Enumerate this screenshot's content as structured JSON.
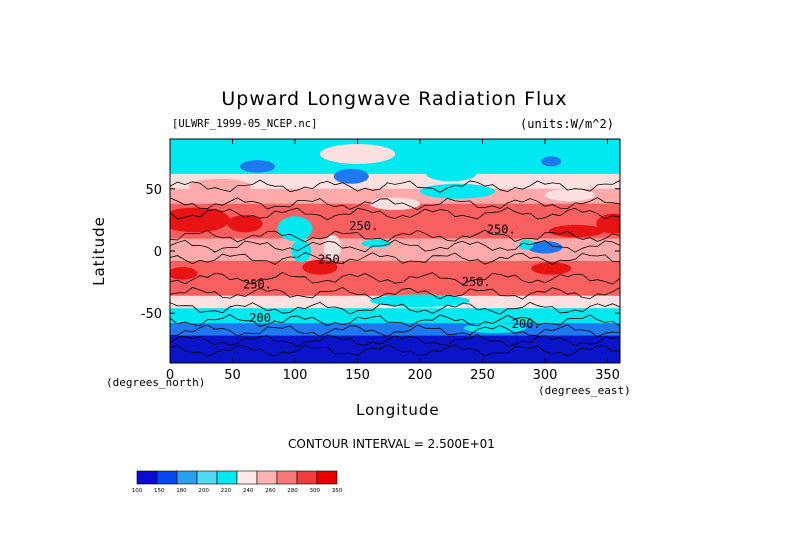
{
  "chart_data": {
    "type": "heatmap",
    "title": "Upward Longwave Radiation Flux",
    "file_label": "[ULWRF_1999-05_NCEP.nc]",
    "units_label": "(units:W/m^2)",
    "xlabel": "Longitude",
    "ylabel": "Latitude",
    "x_units": "(degrees_east)",
    "y_units": "(degrees_north)",
    "xlim": [
      0,
      360
    ],
    "ylim": [
      -90,
      90
    ],
    "x_ticks": [
      "0",
      "50",
      "100",
      "150",
      "200",
      "250",
      "300",
      "350"
    ],
    "y_ticks": [
      "50",
      "0",
      "-50"
    ],
    "contour_interval_text": "CONTOUR INTERVAL = 2.500E+01",
    "contour_labels": [
      {
        "text": "250.",
        "lon": 70,
        "lat": -30
      },
      {
        "text": "250.",
        "lon": 155,
        "lat": 17
      },
      {
        "text": "250.",
        "lon": 245,
        "lat": -28
      },
      {
        "text": "250.",
        "lon": 265,
        "lat": 14
      },
      {
        "text": "250.",
        "lon": 130,
        "lat": -10
      },
      {
        "text": "200.",
        "lon": 75,
        "lat": -57
      },
      {
        "text": "200.",
        "lon": 285,
        "lat": -62
      }
    ],
    "colorbar": {
      "levels": [
        "100",
        "150",
        "180",
        "200",
        "220",
        "240",
        "260",
        "280",
        "300",
        "350"
      ],
      "colors": [
        "#0a0ad2",
        "#0a46f0",
        "#28a0f0",
        "#50dcf0",
        "#00e8f0",
        "#ffe8e8",
        "#ffb4b4",
        "#f87878",
        "#f03c3c",
        "#e80000"
      ]
    },
    "band_colors": {
      "very_low": "#0a14c8",
      "low": "#1e78f0",
      "mid_low": "#00e8f0",
      "mid": "#ffe0e0",
      "mid_high": "#ffaaaa",
      "high": "#f86060",
      "very_high": "#e81414"
    }
  }
}
